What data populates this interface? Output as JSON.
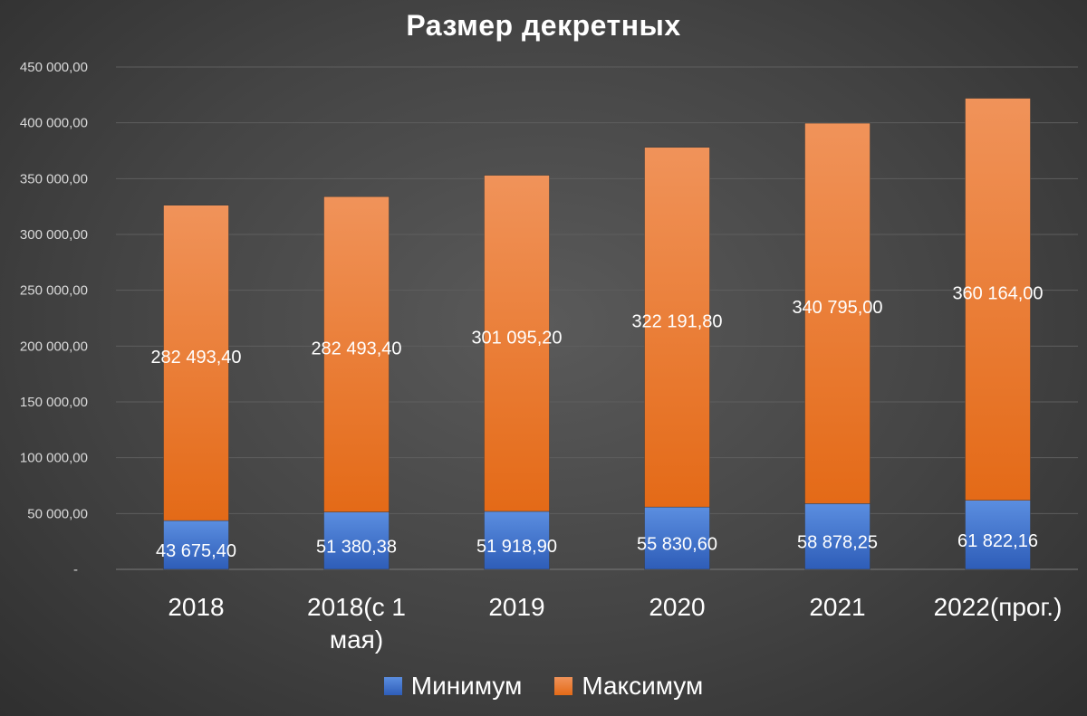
{
  "chart_data": {
    "type": "bar",
    "stacked": true,
    "title": "Размер декретных",
    "categories": [
      "2018",
      "2018(с 1 мая)",
      "2019",
      "2020",
      "2021",
      "2022(прог.)"
    ],
    "category_lines": [
      [
        "2018"
      ],
      [
        "2018(с 1",
        "мая)"
      ],
      [
        "2019"
      ],
      [
        "2020"
      ],
      [
        "2021"
      ],
      [
        "2022(прог.)"
      ]
    ],
    "series": [
      {
        "name": "Минимум",
        "color": "#4472c4",
        "values": [
          43675.4,
          51380.38,
          51918.9,
          55830.6,
          58878.25,
          61822.16
        ],
        "labels": [
          "43 675,40",
          "51 380,38",
          "51 918,90",
          "55 830,60",
          "58 878,25",
          "61 822,16"
        ]
      },
      {
        "name": "Максимум",
        "color": "#ed7d31",
        "values": [
          282493.4,
          282493.4,
          301095.2,
          322191.8,
          340795.0,
          360164.0
        ],
        "labels": [
          "282 493,40",
          "282 493,40",
          "301 095,20",
          "322 191,80",
          "340 795,00",
          "360 164,00"
        ]
      }
    ],
    "ylim": [
      0,
      450000
    ],
    "yticks": [
      0,
      50000,
      100000,
      150000,
      200000,
      250000,
      300000,
      350000,
      400000,
      450000
    ],
    "ytick_labels": [
      "-",
      "50 000,00",
      "100 000,00",
      "150 000,00",
      "200 000,00",
      "250 000,00",
      "300 000,00",
      "350 000,00",
      "400 000,00",
      "450 000,00"
    ],
    "grid": true,
    "legend_position": "bottom"
  }
}
